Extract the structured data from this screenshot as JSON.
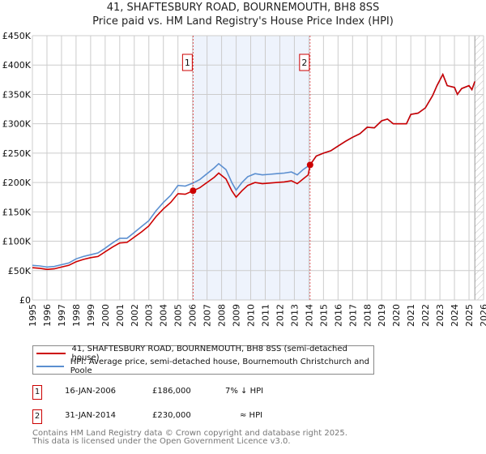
{
  "title_line1": "41, SHAFTESBURY ROAD, BOURNEMOUTH, BH8 8SS",
  "title_line2": "Price paid vs. HM Land Registry's House Price Index (HPI)",
  "colors": {
    "property": "#cc0000",
    "hpi": "#5b8fd0",
    "shade": "#eef3fc"
  },
  "chart_data": {
    "type": "line",
    "xlim": [
      1995,
      2026
    ],
    "ylim": [
      0,
      450000
    ],
    "ytick_labels": [
      "£0",
      "£50K",
      "£100K",
      "£150K",
      "£200K",
      "£250K",
      "£300K",
      "£350K",
      "£400K",
      "£450K"
    ],
    "ytick_values": [
      0,
      50000,
      100000,
      150000,
      200000,
      250000,
      300000,
      350000,
      400000,
      450000
    ],
    "xtick_labels": [
      "1995",
      "1996",
      "1997",
      "1998",
      "1999",
      "2000",
      "2001",
      "2002",
      "2003",
      "2004",
      "2005",
      "2006",
      "2007",
      "2008",
      "2009",
      "2010",
      "2011",
      "2012",
      "2013",
      "2014",
      "2015",
      "2016",
      "2017",
      "2018",
      "2019",
      "2020",
      "2021",
      "2022",
      "2023",
      "2024",
      "2025",
      "2026"
    ],
    "grid": true,
    "shaded_range": [
      2006.04,
      2014.08
    ],
    "hatched_from": 2025.4,
    "series": [
      {
        "name": "41, SHAFTESBURY ROAD, BOURNEMOUTH, BH8 8SS (semi-detached house)",
        "x": [
          1995,
          1995.5,
          1996,
          1996.5,
          1997,
          1997.5,
          1998,
          1998.5,
          1999,
          1999.5,
          2000,
          2000.5,
          2001,
          2001.5,
          2002,
          2002.5,
          2003,
          2003.5,
          2004,
          2004.5,
          2005,
          2005.5,
          2006.04,
          2006.5,
          2007,
          2007.5,
          2007.8,
          2008.3,
          2008.7,
          2009,
          2009.4,
          2009.8,
          2010.3,
          2010.8,
          2011.3,
          2011.8,
          2012.3,
          2012.8,
          2013.2,
          2013.6,
          2013.95,
          2014.08,
          2014.5,
          2015,
          2015.5,
          2016,
          2016.5,
          2017,
          2017.5,
          2018,
          2018.5,
          2019,
          2019.4,
          2019.8,
          2020.2,
          2020.7,
          2021,
          2021.5,
          2022,
          2022.5,
          2022.8,
          2023.2,
          2023.5,
          2024,
          2024.2,
          2024.5,
          2025,
          2025.2,
          2025.4
        ],
        "y": [
          55000,
          54000,
          52000,
          53000,
          56000,
          59000,
          65000,
          69000,
          72000,
          74000,
          82000,
          90000,
          97000,
          98000,
          107000,
          116000,
          126000,
          142000,
          155000,
          166000,
          181000,
          180000,
          186000,
          191000,
          200000,
          209000,
          216000,
          206000,
          186000,
          175000,
          186000,
          195000,
          200000,
          198000,
          199000,
          200000,
          201000,
          203000,
          198000,
          206000,
          213000,
          230000,
          245000,
          250000,
          254000,
          262000,
          270000,
          277000,
          283000,
          294000,
          293000,
          305000,
          308000,
          300000,
          300000,
          300000,
          316000,
          318000,
          327000,
          348000,
          365000,
          384000,
          365000,
          362000,
          350000,
          360000,
          365000,
          358000,
          372000
        ]
      },
      {
        "name": "HPI: Average price, semi-detached house, Bournemouth Christchurch and Poole",
        "x": [
          1995,
          1995.5,
          1996,
          1996.5,
          1997,
          1997.5,
          1998,
          1998.5,
          1999,
          1999.5,
          2000,
          2000.5,
          2001,
          2001.5,
          2002,
          2002.5,
          2003,
          2003.5,
          2004,
          2004.5,
          2005,
          2005.5,
          2006.04,
          2006.5,
          2007,
          2007.5,
          2007.8,
          2008.3,
          2008.7,
          2009,
          2009.4,
          2009.8,
          2010.3,
          2010.8,
          2011.3,
          2011.8,
          2012.3,
          2012.8,
          2013.2,
          2013.6,
          2013.95,
          2014.08,
          2014.5,
          2015,
          2015.5,
          2016,
          2016.5,
          2017,
          2017.5,
          2018,
          2018.5,
          2019,
          2019.4,
          2019.8,
          2020.2,
          2020.7,
          2021,
          2021.5,
          2022,
          2022.5,
          2022.8,
          2023.2,
          2023.5,
          2024,
          2024.2,
          2024.5,
          2025,
          2025.2,
          2025.4
        ],
        "y": [
          59000,
          58000,
          56000,
          57000,
          60000,
          63000,
          70000,
          74000,
          77000,
          80000,
          88000,
          97000,
          105000,
          105000,
          115000,
          125000,
          135000,
          152000,
          166000,
          178000,
          195000,
          194000,
          199000,
          205000,
          215000,
          225000,
          232000,
          222000,
          200000,
          187000,
          200000,
          210000,
          215000,
          213000,
          214000,
          215000,
          216000,
          218000,
          213000,
          222000,
          228000,
          230000,
          245000,
          250000,
          254000,
          262000,
          270000,
          277000,
          283000,
          294000,
          293000,
          305000,
          308000,
          300000,
          300000,
          300000,
          316000,
          318000,
          327000,
          348000,
          365000,
          384000,
          365000,
          362000,
          350000,
          360000,
          365000,
          358000,
          372000
        ]
      }
    ],
    "sales": [
      {
        "label": "1",
        "x": 2006.04,
        "y": 186000
      },
      {
        "label": "2",
        "x": 2014.08,
        "y": 230000
      }
    ]
  },
  "legend": {
    "property": "41, SHAFTESBURY ROAD, BOURNEMOUTH, BH8 8SS (semi-detached house)",
    "hpi": "HPI: Average price, semi-detached house, Bournemouth Christchurch and Poole"
  },
  "sales_table": [
    {
      "num": "1",
      "date": "16-JAN-2006",
      "price": "£186,000",
      "rel": "7% ↓ HPI"
    },
    {
      "num": "2",
      "date": "31-JAN-2014",
      "price": "£230,000",
      "rel": "≈ HPI"
    }
  ],
  "footer": {
    "line1": "Contains HM Land Registry data © Crown copyright and database right 2025.",
    "line2": "This data is licensed under the Open Government Licence v3.0."
  }
}
